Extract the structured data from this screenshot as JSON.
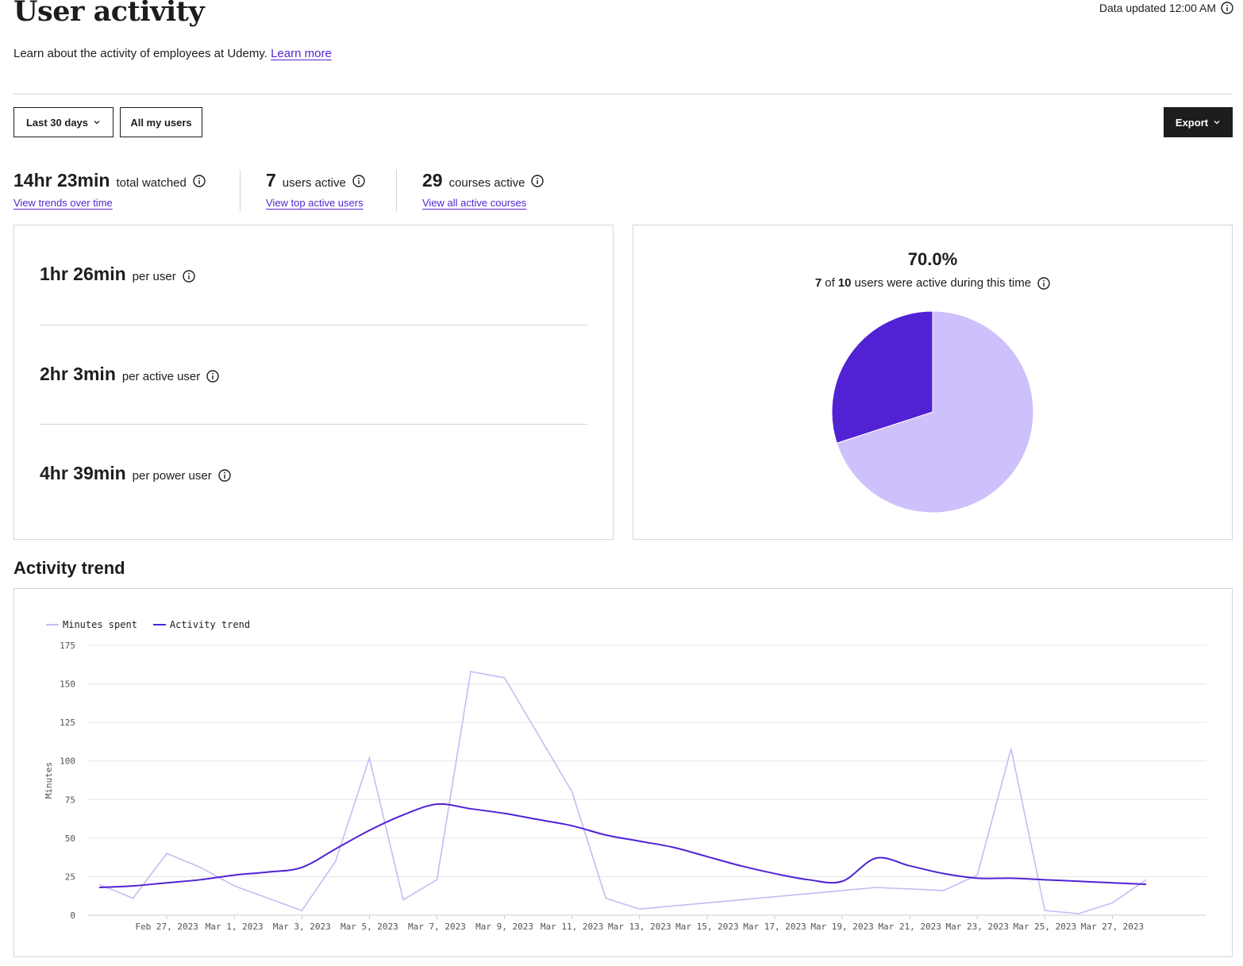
{
  "header": {
    "title": "User activity",
    "updated": "Data updated 12:00 AM",
    "subtitle": "Learn about the activity of employees at Udemy.",
    "learn_more": "Learn more"
  },
  "filters": {
    "period": "Last 30 days",
    "users": "All my users",
    "export": "Export"
  },
  "stats": [
    {
      "value": "14hr 23min",
      "label": "total watched",
      "link": "View trends over time"
    },
    {
      "value": "7",
      "label": "users active",
      "link": "View top active users"
    },
    {
      "value": "29",
      "label": "courses active",
      "link": "View all active courses"
    }
  ],
  "metrics": [
    {
      "value": "1hr 26min",
      "label": "per user"
    },
    {
      "value": "2hr 3min",
      "label": "per active user"
    },
    {
      "value": "4hr 39min",
      "label": "per power user"
    }
  ],
  "pie": {
    "percent": "70.0%",
    "active": "7",
    "of": "of",
    "total": "10",
    "desc": "users were active during this time",
    "active_color": "#cec0fc",
    "inactive_color": "#5022d4"
  },
  "trend": {
    "title": "Activity trend"
  },
  "chart_data": {
    "type": "line",
    "ylabel": "Minutes",
    "ylim": [
      0,
      175
    ],
    "yticks": [
      0,
      25,
      50,
      75,
      100,
      125,
      150,
      175
    ],
    "xtick_labels": [
      "Feb 27, 2023",
      "Mar 1, 2023",
      "Mar 3, 2023",
      "Mar 5, 2023",
      "Mar 7, 2023",
      "Mar 9, 2023",
      "Mar 11, 2023",
      "Mar 13, 2023",
      "Mar 15, 2023",
      "Mar 17, 2023",
      "Mar 19, 2023",
      "Mar 21, 2023",
      "Mar 23, 2023",
      "Mar 25, 2023",
      "Mar 27, 2023"
    ],
    "x": [
      "Feb 25, 2023",
      "Feb 26, 2023",
      "Feb 27, 2023",
      "Feb 28, 2023",
      "Mar 1, 2023",
      "Mar 2, 2023",
      "Mar 3, 2023",
      "Mar 4, 2023",
      "Mar 5, 2023",
      "Mar 6, 2023",
      "Mar 7, 2023",
      "Mar 8, 2023",
      "Mar 9, 2023",
      "Mar 10, 2023",
      "Mar 11, 2023",
      "Mar 12, 2023",
      "Mar 13, 2023",
      "Mar 14, 2023",
      "Mar 15, 2023",
      "Mar 16, 2023",
      "Mar 17, 2023",
      "Mar 18, 2023",
      "Mar 19, 2023",
      "Mar 20, 2023",
      "Mar 21, 2023",
      "Mar 22, 2023",
      "Mar 23, 2023",
      "Mar 24, 2023",
      "Mar 25, 2023",
      "Mar 26, 2023",
      "Mar 27, 2023",
      "Mar 28, 2023"
    ],
    "legend_position": "top-left",
    "series": [
      {
        "name": "Minutes spent",
        "color": "#c6bcf2",
        "values": [
          20,
          11,
          40,
          31,
          19,
          11,
          3,
          35,
          102,
          10,
          23,
          158,
          154,
          117,
          80,
          11,
          4,
          6,
          8,
          10,
          12,
          14,
          16,
          18,
          17,
          16,
          26,
          108,
          3,
          1,
          8,
          23
        ]
      },
      {
        "name": "Activity trend",
        "color": "#5022d4",
        "values": [
          18,
          19,
          21,
          23,
          26,
          28,
          31,
          43,
          55,
          65,
          72,
          69,
          66,
          62,
          58,
          52,
          48,
          44,
          38,
          32,
          27,
          23,
          22,
          37,
          32,
          27,
          24,
          24,
          23,
          22,
          21,
          20
        ]
      }
    ]
  }
}
